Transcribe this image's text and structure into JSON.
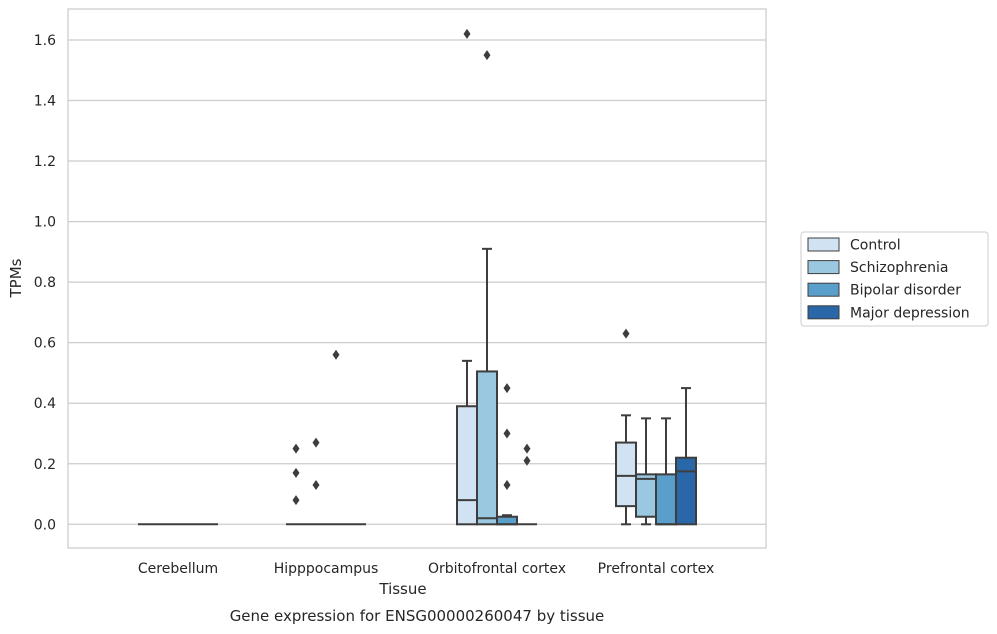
{
  "chart_data": {
    "type": "boxplot",
    "title": "Gene expression for ENSG00000260047 by tissue",
    "xlabel": "Tissue",
    "ylabel": "TPMs",
    "ylim": [
      -0.08,
      1.7
    ],
    "yticks": [
      "0.0",
      "0.2",
      "0.4",
      "0.6",
      "0.8",
      "1.0",
      "1.2",
      "1.4",
      "1.6"
    ],
    "grid": true,
    "legend_placement": "outside right",
    "categories": [
      "Cerebellum",
      "Hipppocampus",
      "Orbitofrontal cortex",
      "Prefrontal cortex"
    ],
    "series": [
      {
        "name": "Control",
        "color": "#d1e2f2",
        "boxes": [
          {
            "category": 0,
            "min": 0,
            "q1": 0,
            "median": 0,
            "q3": 0,
            "max": 0,
            "outliers": []
          },
          {
            "category": 1,
            "min": 0,
            "q1": 0,
            "median": 0,
            "q3": 0,
            "max": 0,
            "outliers": [
              0.08,
              0.17,
              0.25
            ]
          },
          {
            "category": 2,
            "min": 0,
            "q1": 0,
            "median": 0.08,
            "q3": 0.39,
            "max": 0.54,
            "outliers": [
              1.62
            ]
          },
          {
            "category": 3,
            "min": 0,
            "q1": 0.06,
            "median": 0.16,
            "q3": 0.27,
            "max": 0.36,
            "outliers": [
              0.63
            ]
          }
        ]
      },
      {
        "name": "Schizophrenia",
        "color": "#9ac8e0",
        "boxes": [
          {
            "category": 0,
            "min": 0,
            "q1": 0,
            "median": 0,
            "q3": 0,
            "max": 0,
            "outliers": []
          },
          {
            "category": 1,
            "min": 0,
            "q1": 0,
            "median": 0,
            "q3": 0,
            "max": 0,
            "outliers": [
              0.13,
              0.27
            ]
          },
          {
            "category": 2,
            "min": 0,
            "q1": 0,
            "median": 0.02,
            "q3": 0.505,
            "max": 0.91,
            "outliers": [
              1.55
            ]
          },
          {
            "category": 3,
            "min": 0,
            "q1": 0.025,
            "median": 0.15,
            "q3": 0.165,
            "max": 0.35,
            "outliers": []
          }
        ]
      },
      {
        "name": "Bipolar disorder",
        "color": "#5a9fcc",
        "boxes": [
          {
            "category": 0,
            "min": 0,
            "q1": 0,
            "median": 0,
            "q3": 0,
            "max": 0,
            "outliers": []
          },
          {
            "category": 1,
            "min": 0,
            "q1": 0,
            "median": 0,
            "q3": 0,
            "max": 0,
            "outliers": [
              0.56
            ]
          },
          {
            "category": 2,
            "min": 0,
            "q1": 0,
            "median": 0,
            "q3": 0.025,
            "max": 0.03,
            "outliers": [
              0.13,
              0.3,
              0.45
            ]
          },
          {
            "category": 3,
            "min": 0,
            "q1": 0,
            "median": 0,
            "q3": 0.165,
            "max": 0.35,
            "outliers": []
          }
        ]
      },
      {
        "name": "Major depression",
        "color": "#2967a9",
        "boxes": [
          {
            "category": 0,
            "min": 0,
            "q1": 0,
            "median": 0,
            "q3": 0,
            "max": 0,
            "outliers": []
          },
          {
            "category": 1,
            "min": 0,
            "q1": 0,
            "median": 0,
            "q3": 0,
            "max": 0,
            "outliers": []
          },
          {
            "category": 2,
            "min": 0,
            "q1": 0,
            "median": 0,
            "q3": 0,
            "max": 0,
            "outliers": [
              0.21,
              0.25
            ]
          },
          {
            "category": 3,
            "min": 0,
            "q1": 0,
            "median": 0.175,
            "q3": 0.22,
            "max": 0.45,
            "outliers": []
          }
        ]
      }
    ]
  }
}
